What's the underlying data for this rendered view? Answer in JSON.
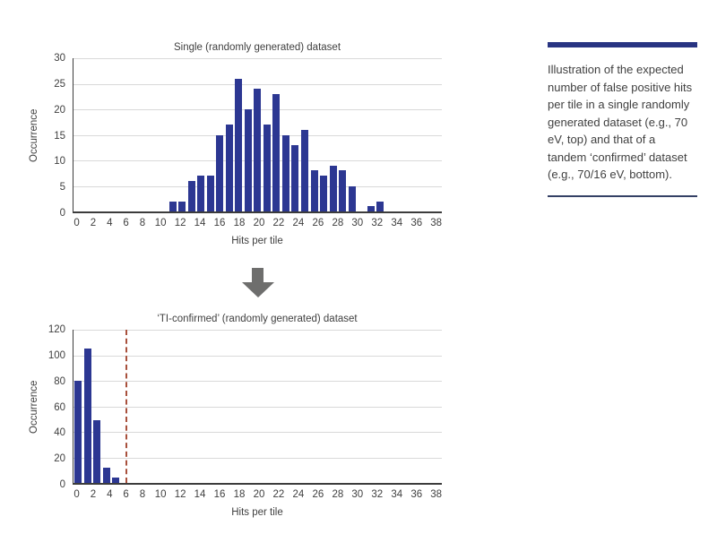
{
  "caption_panel": {
    "text": "Illustration of the expected number of false positive hits per tile in a single randomly generated dataset (e.g., 70 eV, top) and that of a tandem ‘confirmed’ dataset (e.g., 70/16 eV, bottom)."
  },
  "icons": {
    "down_arrow": "solid gray block arrow pointing down between the two charts"
  },
  "colors": {
    "bar": "#2c3792",
    "accent_navy": "#283482",
    "caption_rule_bottom": "#344065",
    "threshold_red": "#a8503c",
    "arrow_gray": "#6e6e6d",
    "grid": "#d9d9d9",
    "axis": "#3c3c3c",
    "text": "#3f3f3f",
    "background": "#ffffff"
  },
  "chart_data": [
    {
      "type": "bar",
      "title": "Single (randomly generated) dataset",
      "xlabel": "Hits per tile",
      "ylabel": "Occurrence",
      "x_range": [
        0,
        38
      ],
      "values": [
        0,
        0,
        0,
        0,
        0,
        0,
        0,
        0,
        0,
        0,
        2,
        2,
        6,
        7,
        7,
        15,
        17,
        26,
        20,
        24,
        17,
        23,
        15,
        13,
        16,
        8,
        7,
        9,
        8,
        5,
        0,
        1,
        2,
        0,
        0,
        0,
        0,
        0,
        0
      ],
      "ylim": [
        0,
        30
      ],
      "yticks": [
        0,
        5,
        10,
        15,
        20,
        25,
        30
      ],
      "xticks": [
        0,
        2,
        4,
        6,
        8,
        10,
        12,
        14,
        16,
        18,
        20,
        22,
        24,
        26,
        28,
        30,
        32,
        34,
        36,
        38
      ],
      "grid": true,
      "legend": "none"
    },
    {
      "type": "bar",
      "title": "‘TI-confirmed’ (randomly generated) dataset",
      "xlabel": "Hits per tile",
      "ylabel": "Occurrence",
      "x_range": [
        0,
        38
      ],
      "values": [
        80,
        105,
        49,
        12,
        4,
        0,
        0,
        0,
        0,
        0,
        0,
        0,
        0,
        0,
        0,
        0,
        0,
        0,
        0,
        0,
        0,
        0,
        0,
        0,
        0,
        0,
        0,
        0,
        0,
        0,
        0,
        0,
        0,
        0,
        0,
        0,
        0,
        0,
        0
      ],
      "ylim": [
        0,
        120
      ],
      "yticks": [
        0,
        20,
        40,
        60,
        80,
        100,
        120
      ],
      "xticks": [
        0,
        2,
        4,
        6,
        8,
        10,
        12,
        14,
        16,
        18,
        20,
        22,
        24,
        26,
        28,
        30,
        32,
        34,
        36,
        38
      ],
      "grid": true,
      "legend": "none",
      "threshold_line": {
        "x": 5,
        "style": "dashed",
        "color": "#a8503c"
      }
    }
  ]
}
